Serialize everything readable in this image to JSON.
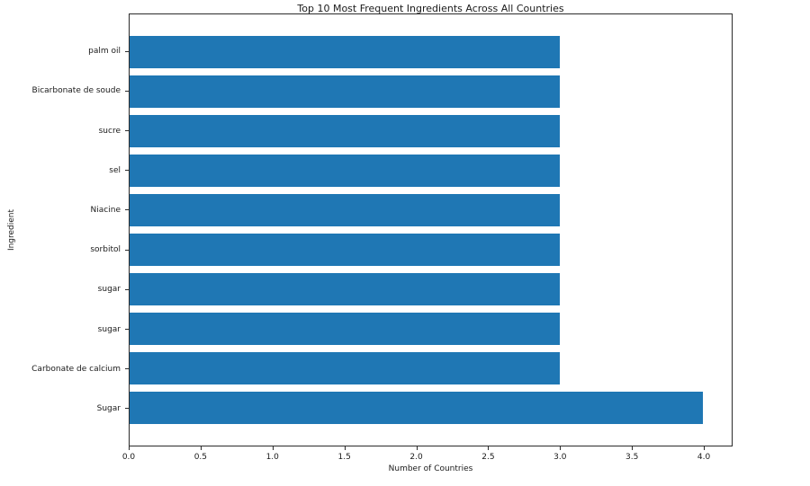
{
  "chart_data": {
    "type": "bar",
    "orientation": "horizontal",
    "title": "Top 10 Most Frequent Ingredients Across All Countries",
    "xlabel": "Number of Countries",
    "ylabel": "Ingredient",
    "categories": [
      "palm oil",
      "Bicarbonate de soude",
      "sucre",
      "sel",
      "Niacine",
      "sorbitol",
      "sugar",
      "sugar",
      "Carbonate de calcium",
      "Sugar"
    ],
    "values": [
      3,
      3,
      3,
      3,
      3,
      3,
      3,
      3,
      3,
      4
    ],
    "xlim": [
      0,
      4.2
    ],
    "xticks": [
      0.0,
      0.5,
      1.0,
      1.5,
      2.0,
      2.5,
      3.0,
      3.5,
      4.0
    ],
    "xtick_labels": [
      "0.0",
      "0.5",
      "1.0",
      "1.5",
      "2.0",
      "2.5",
      "3.0",
      "3.5",
      "4.0"
    ],
    "bar_color": "#1f77b4",
    "grid": false,
    "legend": false,
    "background_color": "#ffffff"
  }
}
